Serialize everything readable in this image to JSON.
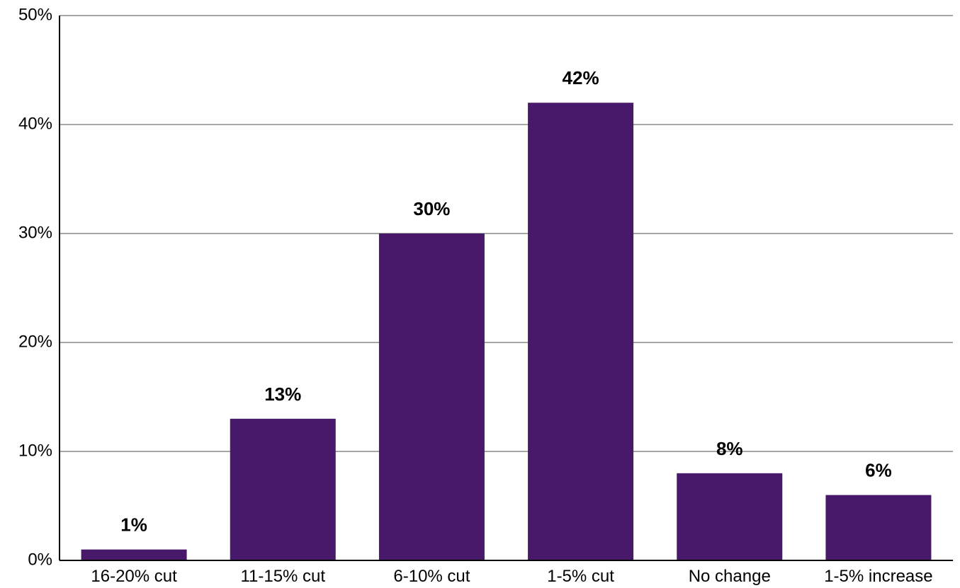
{
  "chart_data": {
    "type": "bar",
    "categories": [
      "16-20% cut",
      "11-15% cut",
      "6-10% cut",
      "1-5% cut",
      "No change",
      "1-5% increase"
    ],
    "values": [
      1,
      13,
      30,
      42,
      8,
      6
    ],
    "data_labels": [
      "1%",
      "13%",
      "30%",
      "42%",
      "8%",
      "6%"
    ],
    "ylim": [
      0,
      50
    ],
    "yticks": [
      0,
      10,
      20,
      30,
      40,
      50
    ],
    "ytick_labels": [
      "0%",
      "10%",
      "20%",
      "30%",
      "40%",
      "50%"
    ],
    "grid": true,
    "title": "",
    "xlabel": "",
    "ylabel": ""
  },
  "colors": {
    "bar": "#48186a",
    "gridline": "#a6a6a6",
    "axis": "#000000"
  }
}
